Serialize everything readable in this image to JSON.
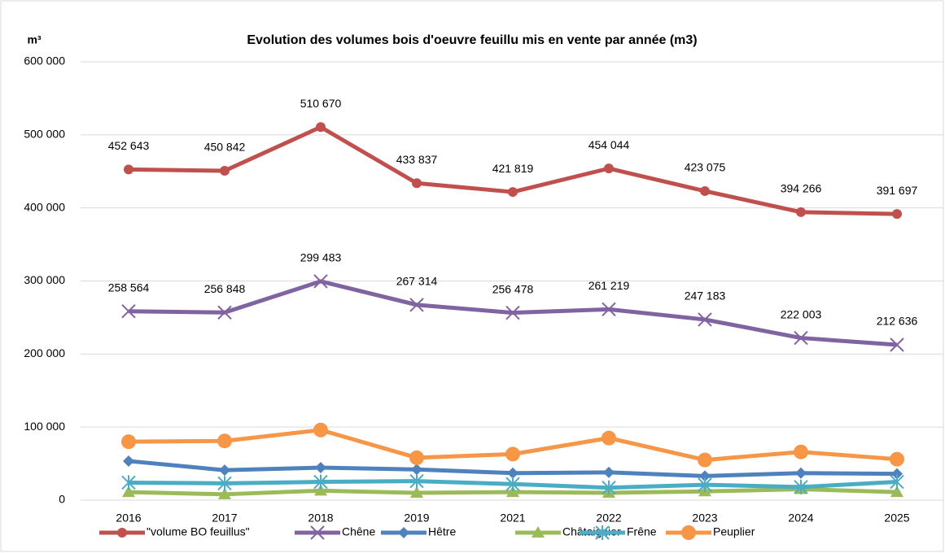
{
  "chart_data": {
    "type": "line",
    "title": "Evolution des volumes bois d'oeuvre feuillu mis en vente par année (m3)",
    "y_label": "m³",
    "categories": [
      "2016",
      "2017",
      "2018",
      "2019",
      "2021",
      "2022",
      "2023",
      "2024",
      "2025"
    ],
    "ylim": [
      0,
      600000
    ],
    "yticks": [
      0,
      {
        "value": 100000,
        "label": "100 000"
      },
      {
        "value": 200000,
        "label": "200 000"
      },
      {
        "value": 300000,
        "label": "300 000"
      },
      {
        "value": 400000,
        "label": "400 000"
      },
      {
        "value": 500000,
        "label": "500 000"
      },
      {
        "value": 600000,
        "label": "600 000"
      }
    ],
    "grid": true,
    "legend": "bottom",
    "series": [
      {
        "name": "\"volume BO feuillus\"",
        "color": "#c0504d",
        "marker": "circle",
        "values": [
          452643,
          450842,
          510670,
          433837,
          421819,
          454044,
          423075,
          394266,
          391697
        ],
        "value_labels": [
          "452 643",
          "450 842",
          "510 670",
          "433 837",
          "421 819",
          "454 044",
          "423 075",
          "394 266",
          "391 697"
        ]
      },
      {
        "name": "Chêne",
        "color": "#8064a2",
        "marker": "x",
        "values": [
          258564,
          256848,
          299483,
          267314,
          256478,
          261219,
          247183,
          222003,
          212636
        ],
        "value_labels": [
          "258 564",
          "256 848",
          "299 483",
          "267 314",
          "256 478",
          "261 219",
          "247 183",
          "222 003",
          "212 636"
        ]
      },
      {
        "name": "Hêtre",
        "color": "#4f81bd",
        "marker": "diamond",
        "values": [
          53500,
          41000,
          44500,
          42000,
          37000,
          38000,
          33000,
          37000,
          36000
        ]
      },
      {
        "name": "Châtaignier",
        "color": "#9bbb59",
        "marker": "triangle",
        "values": [
          11000,
          8000,
          13000,
          10000,
          11000,
          10000,
          12000,
          15000,
          11000
        ]
      },
      {
        "name": "Frêne",
        "color": "#4bacc6",
        "marker": "star",
        "values": [
          24000,
          23000,
          25000,
          26000,
          22000,
          17000,
          21000,
          18000,
          25000
        ]
      },
      {
        "name": "Peuplier",
        "color": "#f79646",
        "marker": "circle-large",
        "values": [
          80000,
          81000,
          96000,
          58000,
          63000,
          85000,
          55000,
          66000,
          56000
        ]
      }
    ]
  }
}
